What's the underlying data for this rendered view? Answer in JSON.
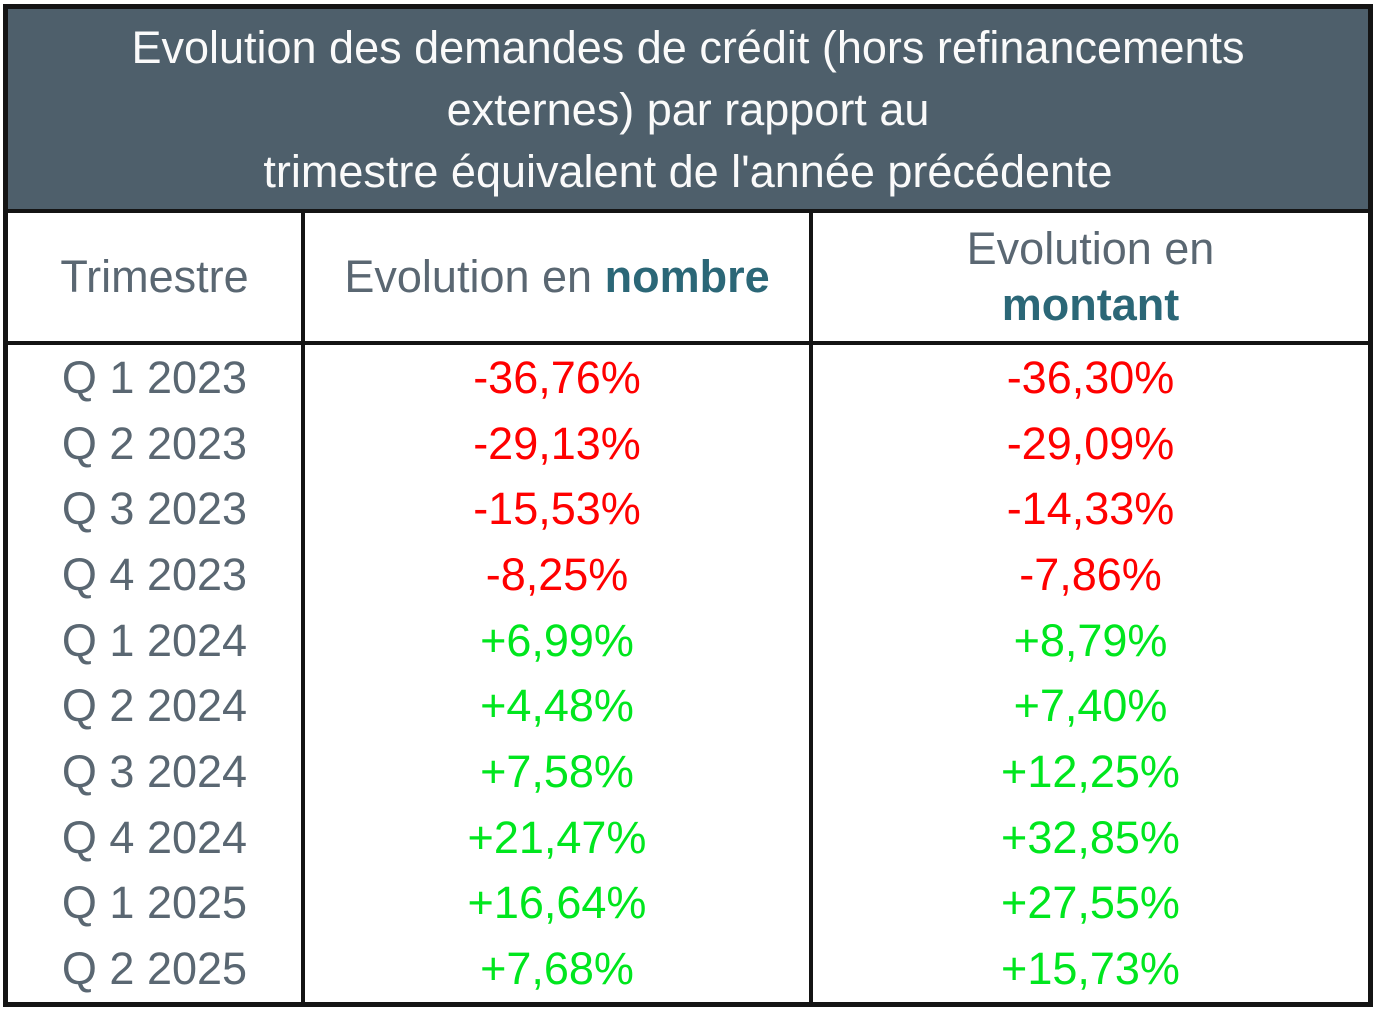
{
  "colors": {
    "title_bg": "#4E5F6B",
    "title_text": "#FAFAFA",
    "gray_text": "#5A6772",
    "teal_text": "#2B6777",
    "positive": "#00E61E",
    "negative": "#FF0000",
    "border": "#141414"
  },
  "title": {
    "lines": [
      "Evolution des demandes de crédit (hors refinancements",
      "externes) par rapport au",
      "trimestre équivalent de l'année précédente"
    ]
  },
  "columns": {
    "trimestre": "Trimestre",
    "evolution_prefix": "Evolution en",
    "nombre": "nombre",
    "montant": "montant"
  },
  "chart_data": {
    "type": "table",
    "title": "Evolution des demandes de crédit (hors refinancements externes) par rapport au trimestre équivalent de l'année précédente",
    "columns": [
      "Trimestre",
      "Evolution en nombre",
      "Evolution en montant"
    ],
    "rows": [
      {
        "trimestre": "Q 1 2023",
        "nombre": "-36,76%",
        "montant": "-36,30%"
      },
      {
        "trimestre": "Q 2 2023",
        "nombre": "-29,13%",
        "montant": "-29,09%"
      },
      {
        "trimestre": "Q 3 2023",
        "nombre": "-15,53%",
        "montant": "-14,33%"
      },
      {
        "trimestre": "Q 4 2023",
        "nombre": "-8,25%",
        "montant": "-7,86%"
      },
      {
        "trimestre": "Q 1 2024",
        "nombre": "+6,99%",
        "montant": "+8,79%"
      },
      {
        "trimestre": "Q 2 2024",
        "nombre": "+4,48%",
        "montant": "+7,40%"
      },
      {
        "trimestre": "Q 3 2024",
        "nombre": "+7,58%",
        "montant": "+12,25%"
      },
      {
        "trimestre": "Q 4 2024",
        "nombre": "+21,47%",
        "montant": "+32,85%"
      },
      {
        "trimestre": "Q 1 2025",
        "nombre": "+16,64%",
        "montant": "+27,55%"
      },
      {
        "trimestre": "Q 2 2025",
        "nombre": "+7,68%",
        "montant": "+15,73%"
      }
    ]
  }
}
